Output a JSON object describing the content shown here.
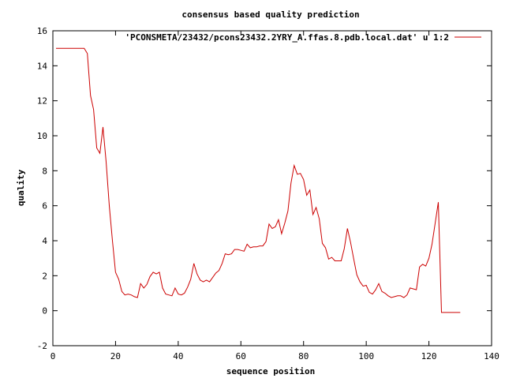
{
  "chart_data": {
    "type": "line",
    "title": "consensus based quality prediction",
    "xlabel": "sequence position",
    "ylabel": "quality",
    "xlim": [
      0,
      140
    ],
    "ylim": [
      -2,
      16
    ],
    "xticks": [
      0,
      20,
      40,
      60,
      80,
      100,
      120,
      140
    ],
    "yticks": [
      -2,
      0,
      2,
      4,
      6,
      8,
      10,
      12,
      14,
      16
    ],
    "grid": false,
    "legend": "top-right",
    "colors": {
      "series": "#cc0000",
      "axes": "#000000"
    },
    "series": [
      {
        "name": "'PCONSMETA/23432/pcons23432.2YRY_A.ffas.8.pdb.local.dat' u 1:2",
        "x": [
          1,
          2,
          3,
          4,
          5,
          6,
          7,
          8,
          9,
          10,
          11,
          12,
          13,
          14,
          15,
          16,
          17,
          18,
          19,
          20,
          21,
          22,
          23,
          24,
          25,
          26,
          27,
          28,
          29,
          30,
          31,
          32,
          33,
          34,
          35,
          36,
          37,
          38,
          39,
          40,
          41,
          42,
          43,
          44,
          45,
          46,
          47,
          48,
          49,
          50,
          51,
          52,
          53,
          54,
          55,
          56,
          57,
          58,
          59,
          60,
          61,
          62,
          63,
          64,
          65,
          66,
          67,
          68,
          69,
          70,
          71,
          72,
          73,
          74,
          75,
          76,
          77,
          78,
          79,
          80,
          81,
          82,
          83,
          84,
          85,
          86,
          87,
          88,
          89,
          90,
          91,
          92,
          93,
          94,
          95,
          96,
          97,
          98,
          99,
          100,
          101,
          102,
          103,
          104,
          105,
          106,
          107,
          108,
          109,
          110,
          111,
          112,
          113,
          114,
          115,
          116,
          117,
          118,
          119,
          120,
          121,
          122,
          123,
          124,
          125,
          126,
          127,
          128,
          129,
          130
        ],
        "y": [
          15.0,
          15.0,
          15.0,
          15.0,
          15.0,
          15.0,
          15.0,
          15.0,
          15.0,
          15.0,
          14.7,
          12.3,
          11.5,
          9.3,
          9.0,
          10.5,
          8.5,
          6.0,
          4.0,
          2.2,
          1.8,
          1.1,
          0.9,
          0.95,
          0.9,
          0.8,
          0.75,
          1.55,
          1.3,
          1.5,
          1.95,
          2.2,
          2.1,
          2.2,
          1.3,
          0.95,
          0.9,
          0.85,
          1.3,
          0.95,
          0.9,
          1.0,
          1.35,
          1.8,
          2.7,
          2.1,
          1.75,
          1.65,
          1.75,
          1.65,
          1.9,
          2.15,
          2.3,
          2.7,
          3.25,
          3.2,
          3.25,
          3.5,
          3.5,
          3.45,
          3.4,
          3.8,
          3.6,
          3.65,
          3.65,
          3.7,
          3.7,
          3.95,
          4.95,
          4.7,
          4.8,
          5.2,
          4.4,
          5.0,
          5.7,
          7.3,
          8.3,
          7.8,
          7.85,
          7.5,
          6.6,
          6.9,
          5.5,
          5.9,
          5.25,
          3.85,
          3.6,
          2.95,
          3.05,
          2.85,
          2.85,
          2.85,
          3.55,
          4.7,
          3.9,
          2.95,
          2.05,
          1.65,
          1.4,
          1.45,
          1.05,
          0.95,
          1.2,
          1.55,
          1.1,
          1.0,
          0.85,
          0.75,
          0.8,
          0.85,
          0.85,
          0.75,
          0.9,
          1.3,
          1.25,
          1.2,
          2.5,
          2.65,
          2.55,
          3.0,
          3.8,
          5.0,
          6.2,
          -0.1,
          -0.1,
          -0.1,
          -0.1,
          -0.1,
          -0.1,
          -0.1
        ]
      }
    ]
  }
}
